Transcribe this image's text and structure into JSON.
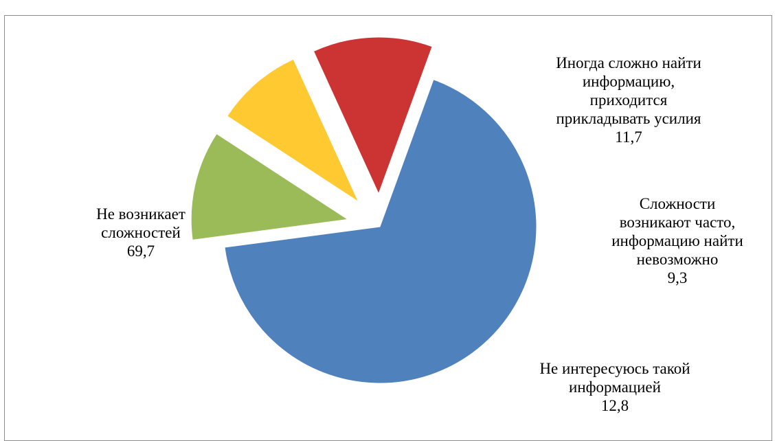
{
  "chart_data": {
    "type": "pie",
    "title": "",
    "value_format": "comma-decimal",
    "colors": [
      "#4f81bd",
      "#9bbb59",
      "#ffc932",
      "#cc3333"
    ],
    "slices": [
      {
        "category_lines": [
          "Не возникает",
          "сложностей"
        ],
        "value": 69.7,
        "value_label": "69,7",
        "color": "#4f81bd"
      },
      {
        "category_lines": [
          "Иногда сложно найти",
          "информацию,",
          "приходится",
          "прикладывать усилия"
        ],
        "value": 11.7,
        "value_label": "11,7",
        "color": "#9bbb59"
      },
      {
        "category_lines": [
          "Сложности",
          "возникают часто,",
          "информацию найти",
          "невозможно"
        ],
        "value": 9.3,
        "value_label": "9,3",
        "color": "#ffc932"
      },
      {
        "category_lines": [
          "Не интересуюсь такой",
          "информацией"
        ],
        "value": 12.8,
        "value_label": "12,8",
        "color": "#cc3333"
      }
    ]
  }
}
